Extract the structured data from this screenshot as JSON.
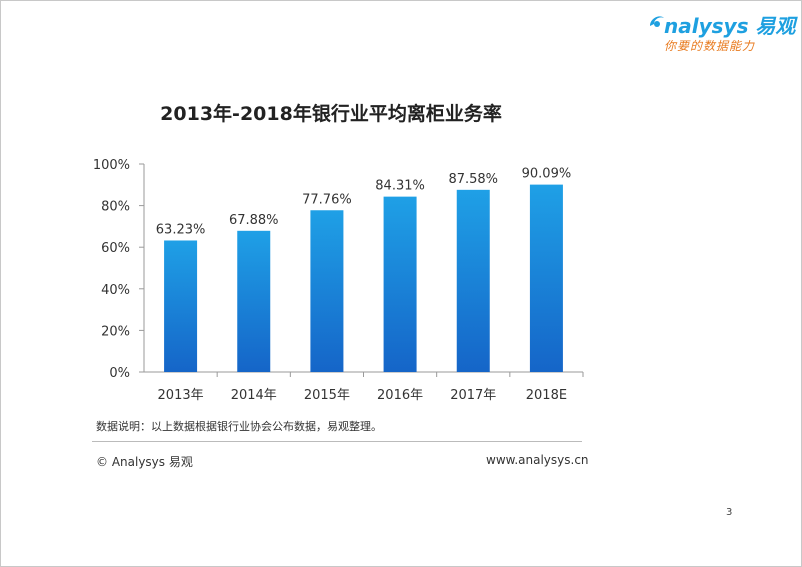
{
  "brand": {
    "name": "nalysys 易观",
    "tagline": "你要的数据能力"
  },
  "colors": {
    "bar_top": "#1fa0e6",
    "bar_bottom": "#1565c8",
    "brand_blue": "#1ea0e0",
    "brand_orange": "#e87a1e"
  },
  "chart_data": {
    "type": "bar",
    "title": "2013年-2018年银行业平均离柜业务率",
    "categories": [
      "2013年",
      "2014年",
      "2015年",
      "2016年",
      "2017年",
      "2018E"
    ],
    "values": [
      63.23,
      67.88,
      77.76,
      84.31,
      87.58,
      90.09
    ],
    "data_labels": [
      "63.23%",
      "67.88%",
      "77.76%",
      "84.31%",
      "87.58%",
      "90.09%"
    ],
    "yticks": [
      "0%",
      "20%",
      "40%",
      "60%",
      "80%",
      "100%"
    ],
    "ylim": [
      0,
      100
    ],
    "xlabel": "",
    "ylabel": "",
    "grid": false,
    "legend": "none"
  },
  "footer": {
    "note": "数据说明：以上数据根据银行业协会公布数据，易观整理。",
    "copyright": "© Analysys 易观",
    "website": "www.analysys.cn"
  },
  "page_number": "3"
}
